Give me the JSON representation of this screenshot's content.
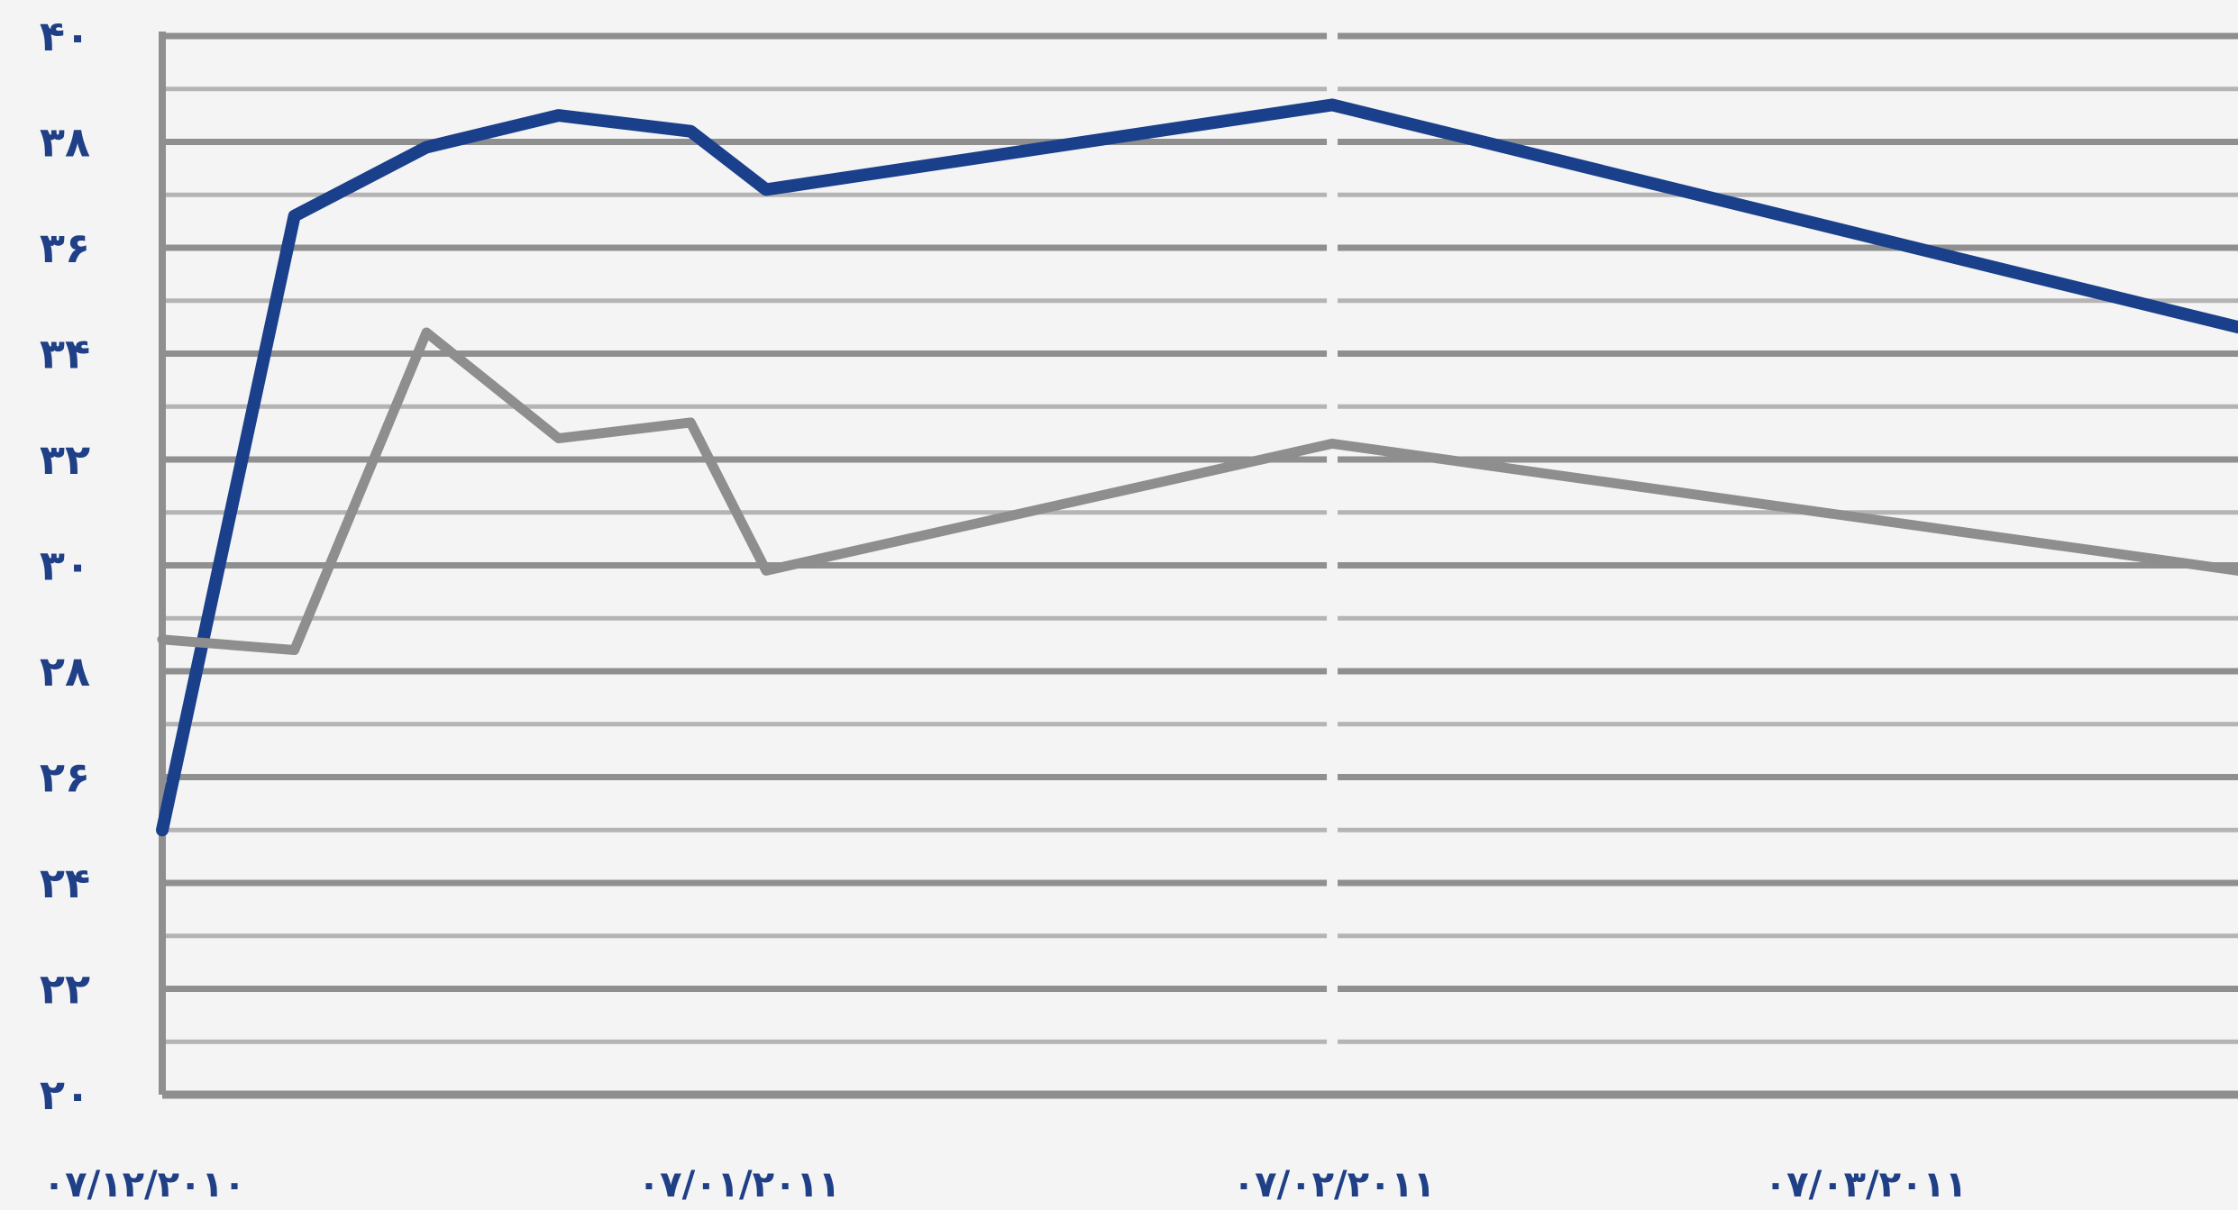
{
  "chart_data": {
    "type": "line",
    "title": "",
    "xlabel": "",
    "ylabel": "",
    "x_tick_labels": [
      "۰۷/۱۲/۲۰۱۰",
      "۰۷/۰۱/۲۰۱۱",
      "۰۷/۰۲/۲۰۱۱",
      "۰۷/۰۳/۲۰۱۱"
    ],
    "y_tick_labels": [
      "۲۰",
      "۲۲",
      "۲۴",
      "۲۶",
      "۲۸",
      "۳۰",
      "۳۲",
      "۳۴",
      "۳۶",
      "۳۸",
      "۴۰"
    ],
    "ylim": [
      20,
      40
    ],
    "xlim": [
      "2010-12-07",
      "2011-03-27"
    ],
    "grid": true,
    "legend": "none",
    "series": [
      {
        "color": "#1a3f8b",
        "x": [
          "2010-12-07",
          "2010-12-14",
          "2010-12-21",
          "2010-12-28",
          "2011-01-04",
          "2011-01-08",
          "2011-02-07",
          "2011-03-27"
        ],
        "y": [
          25.0,
          36.6,
          37.9,
          38.5,
          38.2,
          37.1,
          38.7,
          34.5
        ]
      },
      {
        "color": "#8e8e8e",
        "x": [
          "2010-12-07",
          "2010-12-14",
          "2010-12-21",
          "2010-12-28",
          "2011-01-04",
          "2011-01-08",
          "2011-02-07",
          "2011-03-27"
        ],
        "y": [
          28.6,
          28.4,
          34.4,
          32.4,
          32.7,
          29.9,
          32.3,
          29.9
        ]
      }
    ]
  }
}
